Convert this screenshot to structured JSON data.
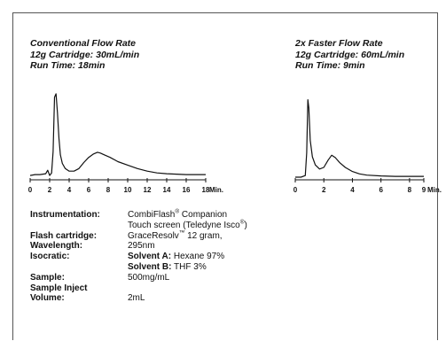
{
  "left_header": {
    "line1": "Conventional Flow Rate",
    "line2": "12g Cartridge: 30mL/min",
    "line3": "Run Time: 18min"
  },
  "right_header": {
    "line1": "2x Faster Flow Rate",
    "line2": "12g Cartridge: 60mL/min",
    "line3": "Run Time: 9min"
  },
  "chart_data": [
    {
      "type": "line",
      "title": "Conventional Flow Rate",
      "xlabel": "Min.",
      "ylabel": "",
      "xlim": [
        0,
        18
      ],
      "ylim": [
        0,
        1
      ],
      "x_ticks": [
        0,
        2,
        4,
        6,
        8,
        10,
        12,
        14,
        16,
        18
      ],
      "grid": false,
      "series": [
        {
          "x": [
            0,
            0.5,
            1.0,
            1.6,
            1.8,
            2.0,
            2.2,
            2.35,
            2.5,
            2.65,
            2.8,
            2.95,
            3.1,
            3.3,
            3.6,
            4.0,
            4.5,
            5.0,
            5.5,
            6.0,
            6.5,
            6.9,
            7.2,
            7.6,
            8.2,
            9.0,
            10.0,
            11.0,
            12.0,
            13.0,
            14.0,
            15.0,
            16.0,
            17.0,
            18.0
          ],
          "y": [
            0.02,
            0.03,
            0.03,
            0.04,
            0.08,
            0.02,
            0.05,
            0.3,
            0.93,
            0.97,
            0.75,
            0.45,
            0.26,
            0.16,
            0.1,
            0.07,
            0.07,
            0.1,
            0.17,
            0.23,
            0.27,
            0.29,
            0.28,
            0.26,
            0.23,
            0.18,
            0.14,
            0.1,
            0.07,
            0.05,
            0.04,
            0.035,
            0.03,
            0.03,
            0.03
          ]
        }
      ]
    },
    {
      "type": "line",
      "title": "2x Faster Flow Rate",
      "xlabel": "Min.",
      "ylabel": "",
      "xlim": [
        0,
        9
      ],
      "ylim": [
        0,
        1
      ],
      "x_ticks": [
        0,
        2,
        4,
        6,
        8,
        9
      ],
      "grid": false,
      "series": [
        {
          "x": [
            0,
            0.4,
            0.7,
            0.8,
            0.88,
            0.95,
            1.05,
            1.2,
            1.4,
            1.7,
            2.0,
            2.3,
            2.55,
            2.8,
            3.1,
            3.5,
            4.0,
            4.5,
            5.0,
            6.0,
            7.0,
            8.0,
            9.0
          ],
          "y": [
            0.0,
            0.0,
            0.02,
            0.3,
            0.95,
            0.85,
            0.45,
            0.25,
            0.15,
            0.1,
            0.12,
            0.21,
            0.27,
            0.24,
            0.18,
            0.12,
            0.07,
            0.04,
            0.025,
            0.015,
            0.01,
            0.01,
            0.01
          ]
        }
      ]
    }
  ],
  "params": [
    {
      "label": "Instrumentation:",
      "value": "CombiFlash",
      "sup": "®",
      "value_tail": " Companion"
    },
    {
      "label": "",
      "value": "Touch screen (Teledyne Isco",
      "sup": "®",
      "value_tail": ")"
    },
    {
      "label": "Flash cartridge:",
      "value": "GraceResolv",
      "sup": "™",
      "value_tail": " 12 gram,"
    },
    {
      "label": "Wavelength:",
      "value": "295nm",
      "sup": "",
      "value_tail": ""
    },
    {
      "label": "Isocratic:",
      "bold_value": "Solvent A:",
      "value": " Hexane 97%",
      "sup": "",
      "value_tail": ""
    },
    {
      "label": "",
      "bold_value": "Solvent B:",
      "value": " THF 3%",
      "sup": "",
      "value_tail": ""
    },
    {
      "label": "Sample:",
      "value": "500mg/mL",
      "sup": "",
      "value_tail": ""
    },
    {
      "label": "Sample Inject",
      "value": "",
      "sup": "",
      "value_tail": ""
    },
    {
      "label": "Volume:",
      "value": "2mL",
      "sup": "",
      "value_tail": ""
    }
  ]
}
